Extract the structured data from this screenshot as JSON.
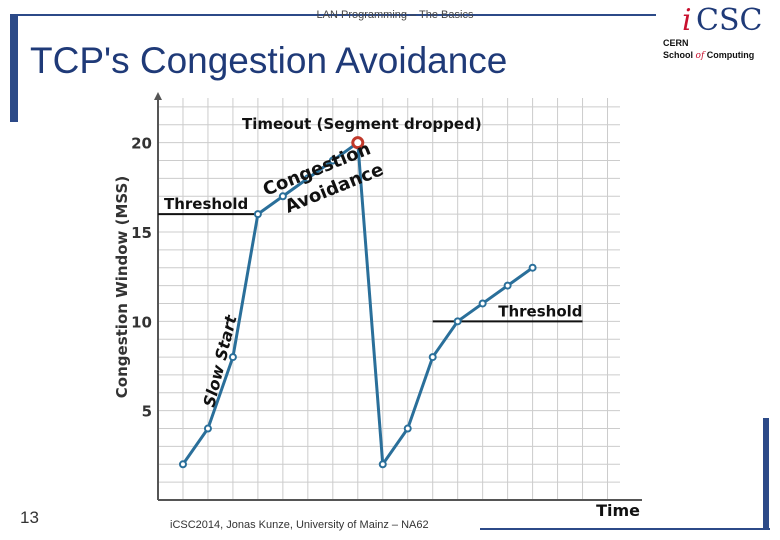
{
  "header": {
    "text": "LAN Programming – The Basics"
  },
  "title": "TCP's Congestion Avoidance",
  "page_number": "13",
  "footer": "iCSC2014, Jonas Kunze, University of Mainz – NA62",
  "logo": {
    "i": "i",
    "csc": "CSC",
    "cern": "CERN",
    "school": "School",
    "of": "of",
    "computing": "Computing"
  },
  "colors": {
    "title": "#1f3a78",
    "line": "#2a6f9a",
    "marker_fill": "#ffffff",
    "drop_marker": "#c0392b",
    "accent_bar": "#2c4a88",
    "grid": "#cccccc"
  },
  "chart_data": {
    "type": "line",
    "xlabel": "Time",
    "ylabel": "Congestion Window (MSS)",
    "yticks": [
      5,
      10,
      15,
      20
    ],
    "ylim": [
      0,
      22.5
    ],
    "xlim": [
      -1,
      17.5
    ],
    "grid": true,
    "series": [
      {
        "x": [
          0,
          1,
          2,
          3,
          4,
          5,
          6,
          7
        ],
        "y": [
          2,
          4,
          8,
          16,
          17,
          18,
          19,
          20
        ]
      },
      {
        "x": [
          8,
          9,
          10,
          11,
          12,
          13,
          14
        ],
        "y": [
          2,
          4,
          8,
          10,
          11,
          12,
          13
        ]
      }
    ],
    "drop_point": {
      "x": 7,
      "y": 20
    },
    "thresholds": [
      {
        "label": "Threshold",
        "y": 16,
        "x_from": -1,
        "x_to": 3
      },
      {
        "label": "Threshold",
        "y": 10,
        "x_from": 10,
        "x_to": 16
      }
    ],
    "annotations": {
      "timeout": "Timeout (Segment dropped)",
      "congestion": "Congestion",
      "avoidance": "Avoidance",
      "slow_start": "Slow Start"
    }
  }
}
